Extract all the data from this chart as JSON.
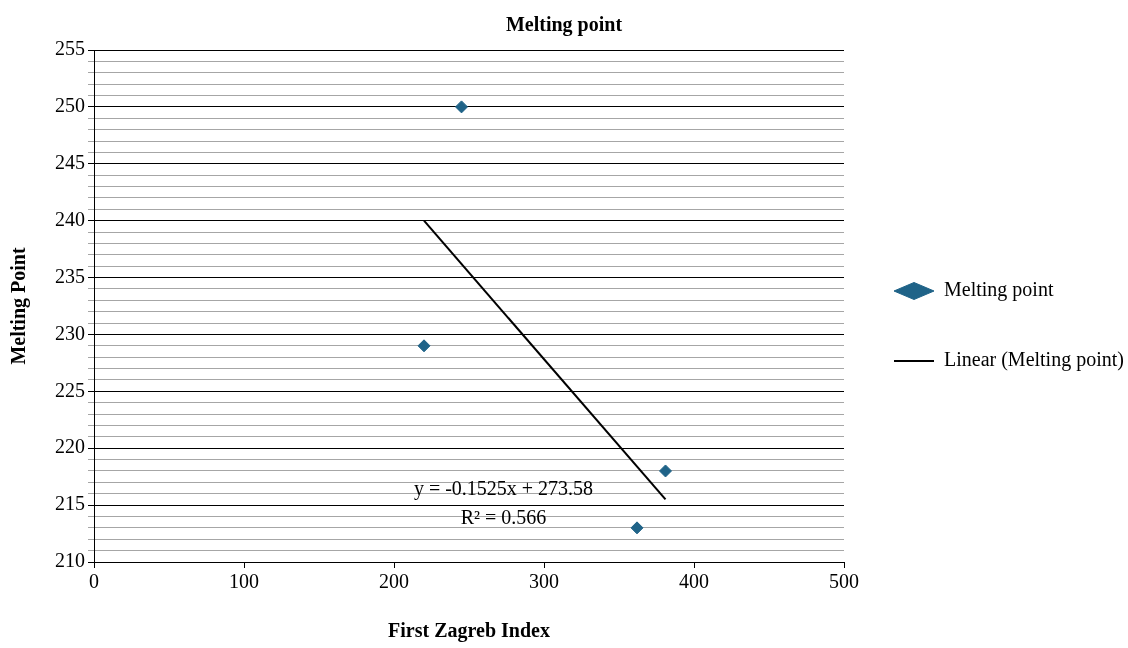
{
  "chart_data": {
    "type": "scatter",
    "title": "Melting point",
    "xlabel": "First Zagreb Index",
    "ylabel": "Melting Point",
    "series": [
      {
        "name": "Melting point",
        "color": "#1f6388",
        "x": [
          220,
          245,
          381,
          362
        ],
        "values": [
          229,
          250,
          218,
          213
        ],
        "marker": "diamond"
      },
      {
        "name": "Linear (Melting point)",
        "type": "line",
        "color": "#000000",
        "x": [
          220,
          381
        ],
        "values": [
          240.0,
          215.5
        ],
        "marker": "none",
        "line_style": "solid"
      }
    ],
    "xlim": [
      0,
      500
    ],
    "xticks": [
      0,
      100,
      200,
      300,
      400,
      500
    ],
    "ylim": [
      210,
      255
    ],
    "yticks": [
      210,
      {
        "value": 211,
        "label": null
      },
      {
        "value": 212,
        "label": null
      },
      {
        "value": 213,
        "label": null
      },
      {
        "value": 214,
        "label": null
      },
      215,
      {
        "value": 216,
        "label": null
      },
      {
        "value": 217,
        "label": null
      },
      {
        "value": 218,
        "label": null
      },
      {
        "value": 219,
        "label": null
      },
      220,
      {
        "value": 221,
        "label": null
      },
      {
        "value": 222,
        "label": null
      },
      {
        "value": 223,
        "label": null
      },
      {
        "value": 224,
        "label": null
      },
      225,
      {
        "value": 226,
        "label": null
      },
      {
        "value": 227,
        "label": null
      },
      {
        "value": 228,
        "label": null
      },
      {
        "value": 229,
        "label": null
      },
      230,
      {
        "value": 231,
        "label": null
      },
      {
        "value": 232,
        "label": null
      },
      {
        "value": 233,
        "label": null
      },
      {
        "value": 234,
        "label": null
      },
      235,
      {
        "value": 236,
        "label": null
      },
      {
        "value": 237,
        "label": null
      },
      {
        "value": 238,
        "label": null
      },
      {
        "value": 239,
        "label": null
      },
      240,
      {
        "value": 241,
        "label": null
      },
      {
        "value": 242,
        "label": null
      },
      {
        "value": 243,
        "label": null
      },
      {
        "value": 244,
        "label": null
      },
      245,
      {
        "value": 246,
        "label": null
      },
      {
        "value": 247,
        "label": null
      },
      {
        "value": 248,
        "label": null
      },
      {
        "value": 249,
        "label": null
      },
      250,
      {
        "value": 251,
        "label": null
      },
      {
        "value": 252,
        "label": null
      },
      {
        "value": 253,
        "label": null
      },
      {
        "value": 254,
        "label": null
      },
      255
    ],
    "grid": "y",
    "legend": "right",
    "annotations": [
      "y = -0.1525x + 273.58",
      "R² = 0.566"
    ]
  }
}
